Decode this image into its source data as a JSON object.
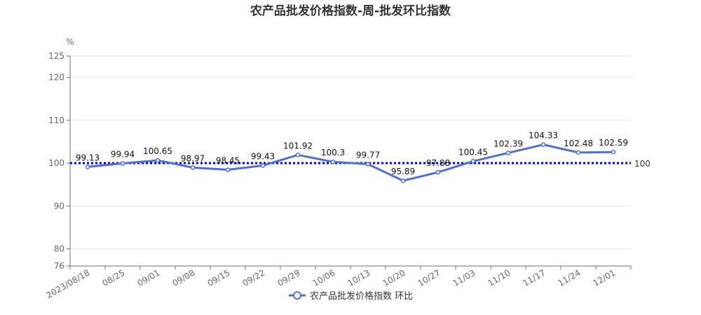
{
  "chart_data": {
    "type": "line",
    "title": "农产品批发价格指数-周-批发环比指数",
    "ylabel": "%",
    "ylim": [
      76,
      125
    ],
    "yticks": [
      76,
      80,
      90,
      100,
      110,
      120,
      125
    ],
    "x": [
      "2023/08/18",
      "08/25",
      "09/01",
      "09/08",
      "09/15",
      "09/22",
      "09/29",
      "10/06",
      "10/13",
      "10/20",
      "10/27",
      "11/03",
      "11/10",
      "11/17",
      "11/24",
      "12/01"
    ],
    "series": [
      {
        "name": "农产品批发价格指数 环比",
        "values": [
          99.13,
          99.94,
          100.65,
          98.97,
          98.45,
          99.43,
          101.92,
          100.3,
          99.77,
          95.89,
          97.88,
          100.45,
          102.39,
          104.33,
          102.48,
          102.59
        ],
        "color": "#5470c6"
      }
    ],
    "reference_line": {
      "value": 100,
      "label": "100",
      "color": "#0000cc",
      "style": "dotted"
    },
    "grid": true,
    "legend_position": "bottom-center"
  }
}
